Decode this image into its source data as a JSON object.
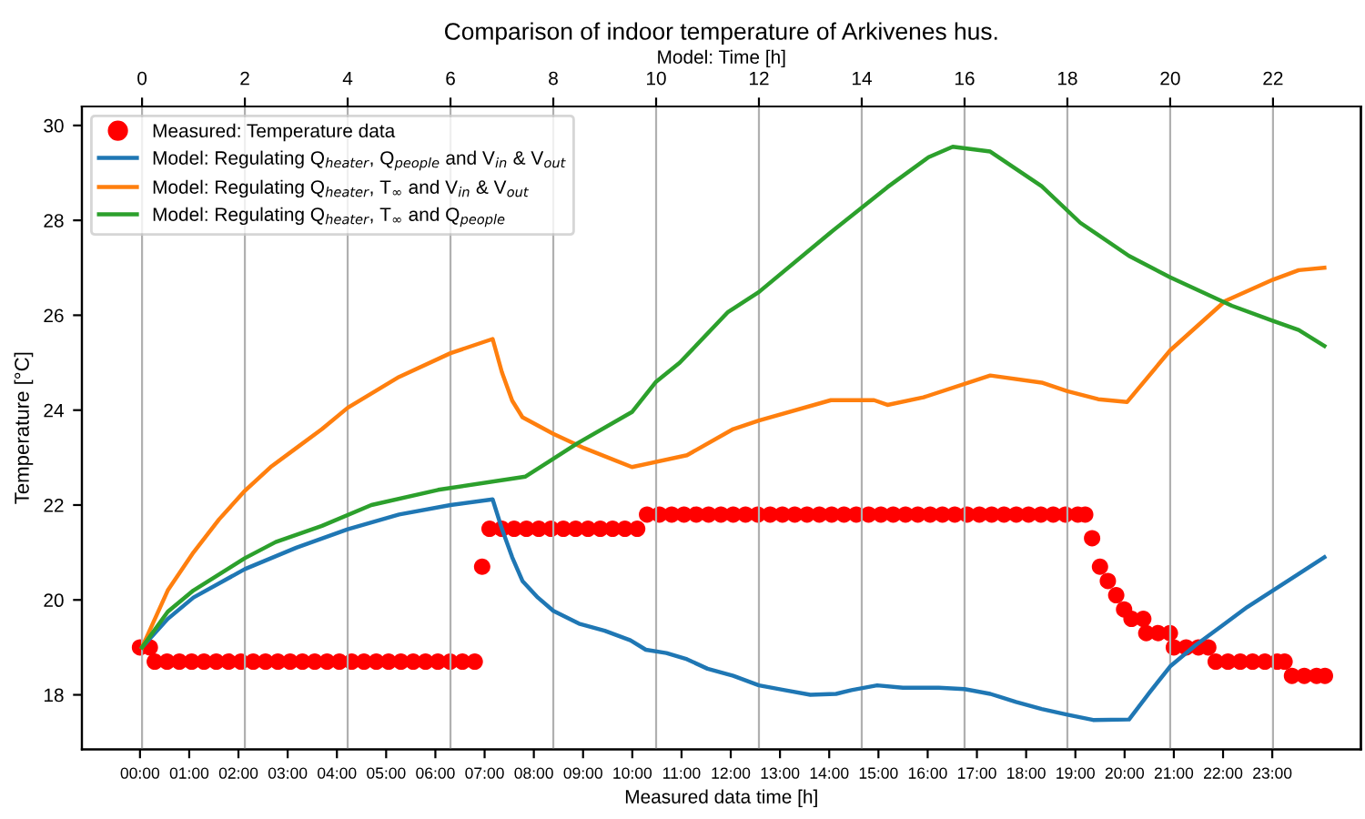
{
  "chart_data": {
    "type": "line",
    "title": "Comparison of indoor temperature of Arkivenes hus.",
    "xlabel": "Measured data time [h]",
    "x2label": "Model: Time [h]",
    "ylabel": "Temperature [°C]",
    "xlim": [
      -1.18,
      24.8
    ],
    "xticks": [
      {
        "value": 0,
        "label": "00:00"
      },
      {
        "value": 1,
        "label": "01:00"
      },
      {
        "value": 2,
        "label": "02:00"
      },
      {
        "value": 3,
        "label": "03:00"
      },
      {
        "value": 4,
        "label": "04:00"
      },
      {
        "value": 5,
        "label": "05:00"
      },
      {
        "value": 6,
        "label": "06:00"
      },
      {
        "value": 7,
        "label": "07:00"
      },
      {
        "value": 8,
        "label": "08:00"
      },
      {
        "value": 9,
        "label": "09:00"
      },
      {
        "value": 10,
        "label": "10:00"
      },
      {
        "value": 11,
        "label": "11:00"
      },
      {
        "value": 12,
        "label": "12:00"
      },
      {
        "value": 13,
        "label": "13:00"
      },
      {
        "value": 14,
        "label": "14:00"
      },
      {
        "value": 15,
        "label": "15:00"
      },
      {
        "value": 16,
        "label": "16:00"
      },
      {
        "value": 17,
        "label": "17:00"
      },
      {
        "value": 18,
        "label": "18:00"
      },
      {
        "value": 19,
        "label": "19:00"
      },
      {
        "value": 20,
        "label": "20:00"
      },
      {
        "value": 21,
        "label": "21:00"
      },
      {
        "value": 22,
        "label": "22:00"
      },
      {
        "value": 23,
        "label": "23:00"
      }
    ],
    "x2lim": [
      -1.17,
      23.71
    ],
    "x2ticks": [
      0,
      2,
      4,
      6,
      8,
      10,
      12,
      14,
      16,
      18,
      20,
      22
    ],
    "ylim": [
      16.85,
      30.4
    ],
    "yticks": [
      18,
      20,
      22,
      24,
      26,
      28,
      30
    ],
    "grid": "x2",
    "legend": "top left",
    "series": [
      {
        "name": "Measured: Temperature data",
        "type": "scatter",
        "marker": "circle",
        "color": "#ff0000",
        "x": [
          0,
          0.2,
          0.3,
          0.55,
          0.8,
          1.05,
          1.3,
          1.55,
          1.8,
          2.05,
          2.3,
          2.55,
          2.8,
          3.05,
          3.3,
          3.55,
          3.8,
          4.05,
          4.3,
          4.55,
          4.8,
          5.05,
          5.3,
          5.55,
          5.8,
          6.05,
          6.3,
          6.55,
          6.8,
          6.95,
          7.1,
          7.35,
          7.6,
          7.85,
          8.1,
          8.35,
          8.6,
          8.85,
          9.1,
          9.35,
          9.6,
          9.85,
          10.1,
          10.3,
          10.55,
          10.8,
          11.05,
          11.3,
          11.55,
          11.8,
          12.05,
          12.3,
          12.55,
          12.8,
          13.05,
          13.3,
          13.55,
          13.8,
          14.05,
          14.3,
          14.55,
          14.8,
          15.05,
          15.3,
          15.55,
          15.8,
          16.05,
          16.3,
          16.55,
          16.8,
          17.05,
          17.3,
          17.55,
          17.8,
          18.05,
          18.3,
          18.55,
          18.8,
          19.05,
          19.2,
          19.34,
          19.5,
          19.66,
          19.83,
          19.99,
          20.14,
          20.38,
          20.44,
          20.68,
          20.92,
          21.0,
          21.25,
          21.5,
          21.7,
          21.85,
          22.1,
          22.35,
          22.6,
          22.85,
          23.1,
          23.25,
          23.4,
          23.65,
          23.9,
          24.07
        ],
        "values": [
          19.0,
          19.0,
          18.7,
          18.7,
          18.7,
          18.7,
          18.7,
          18.7,
          18.7,
          18.7,
          18.7,
          18.7,
          18.7,
          18.7,
          18.7,
          18.7,
          18.7,
          18.7,
          18.7,
          18.7,
          18.7,
          18.7,
          18.7,
          18.7,
          18.7,
          18.7,
          18.7,
          18.7,
          18.7,
          20.7,
          21.5,
          21.5,
          21.5,
          21.5,
          21.5,
          21.5,
          21.5,
          21.5,
          21.5,
          21.5,
          21.5,
          21.5,
          21.5,
          21.8,
          21.8,
          21.8,
          21.8,
          21.8,
          21.8,
          21.8,
          21.8,
          21.8,
          21.8,
          21.8,
          21.8,
          21.8,
          21.8,
          21.8,
          21.8,
          21.8,
          21.8,
          21.8,
          21.8,
          21.8,
          21.8,
          21.8,
          21.8,
          21.8,
          21.8,
          21.8,
          21.8,
          21.8,
          21.8,
          21.8,
          21.8,
          21.8,
          21.8,
          21.8,
          21.8,
          21.8,
          21.3,
          20.7,
          20.4,
          20.1,
          19.8,
          19.6,
          19.6,
          19.3,
          19.3,
          19.3,
          19.0,
          19.0,
          19.0,
          19.0,
          18.7,
          18.7,
          18.7,
          18.7,
          18.7,
          18.7,
          18.7,
          18.4,
          18.4,
          18.4,
          18.4
        ]
      },
      {
        "name": "Model: Regulating Q$_{heater}$, Q$_{people}$ and V$_{in}$ & V$_{out}$",
        "axis": "x2",
        "color": "#1f77b4",
        "x": [
          0,
          0.5,
          1,
          2,
          3,
          4,
          5,
          6,
          6.82,
          7.0,
          7.2,
          7.4,
          7.7,
          8,
          8.5,
          9,
          9.5,
          9.8,
          10.2,
          10.6,
          11,
          11.5,
          12,
          12.5,
          13,
          13.5,
          13.8,
          14.3,
          14.8,
          15.5,
          16,
          16.5,
          17,
          17.5,
          18,
          18.5,
          19.2,
          19.6,
          20,
          20.5,
          21,
          21.5,
          22,
          22.5,
          23
        ],
        "values": [
          19.0,
          19.6,
          20.05,
          20.65,
          21.1,
          21.49,
          21.8,
          22.0,
          22.12,
          21.5,
          20.9,
          20.4,
          20.05,
          19.77,
          19.5,
          19.35,
          19.15,
          18.95,
          18.88,
          18.75,
          18.55,
          18.4,
          18.2,
          18.1,
          18.0,
          18.02,
          18.1,
          18.2,
          18.15,
          18.15,
          18.12,
          18.02,
          17.85,
          17.7,
          17.58,
          17.47,
          17.48,
          18.05,
          18.6,
          19.05,
          19.45,
          19.85,
          20.2,
          20.55,
          20.9
        ]
      },
      {
        "name": "Model: Regulating Q$_{heater}$, T$_{∞}$ and V$_{in}$ & V$_{out}$",
        "axis": "x2",
        "color": "#ff7f0e",
        "x": [
          0,
          0.5,
          1,
          1.5,
          2,
          2.5,
          3,
          3.5,
          4,
          5,
          6,
          6.82,
          7.0,
          7.2,
          7.4,
          8,
          8.6,
          9.53,
          10.6,
          11.5,
          12,
          13.4,
          14.24,
          14.5,
          15.2,
          16.5,
          17.5,
          18,
          18.6,
          19.16,
          20,
          21.07,
          22,
          22.5,
          23
        ],
        "values": [
          19.0,
          20.2,
          21.0,
          21.7,
          22.3,
          22.8,
          23.2,
          23.6,
          24.05,
          24.7,
          25.2,
          25.5,
          24.8,
          24.2,
          23.85,
          23.5,
          23.2,
          22.8,
          23.05,
          23.6,
          23.78,
          24.21,
          24.21,
          24.11,
          24.27,
          24.73,
          24.58,
          24.4,
          24.23,
          24.17,
          25.26,
          26.3,
          26.75,
          26.95,
          27.0
        ]
      },
      {
        "name": "Model: Regulating Q$_{heater}$, T$_{∞}$ and Q$_{people}$",
        "axis": "x2",
        "color": "#2ca02c",
        "x": [
          0,
          0.5,
          1,
          2,
          2.6,
          3.5,
          4.46,
          5.76,
          7.46,
          8.47,
          9.53,
          10,
          10.46,
          11.4,
          12,
          13.4,
          14.5,
          15.3,
          15.77,
          16.5,
          17.5,
          18.25,
          19.2,
          20,
          21.2,
          22,
          22.5,
          23
        ],
        "values": [
          19.0,
          19.75,
          20.2,
          20.88,
          21.22,
          21.56,
          22.0,
          22.32,
          22.6,
          23.3,
          23.96,
          24.6,
          25.0,
          26.07,
          26.49,
          27.75,
          28.7,
          29.33,
          29.55,
          29.45,
          28.72,
          27.95,
          27.25,
          26.8,
          26.2,
          25.88,
          25.69,
          25.35
        ]
      }
    ]
  }
}
